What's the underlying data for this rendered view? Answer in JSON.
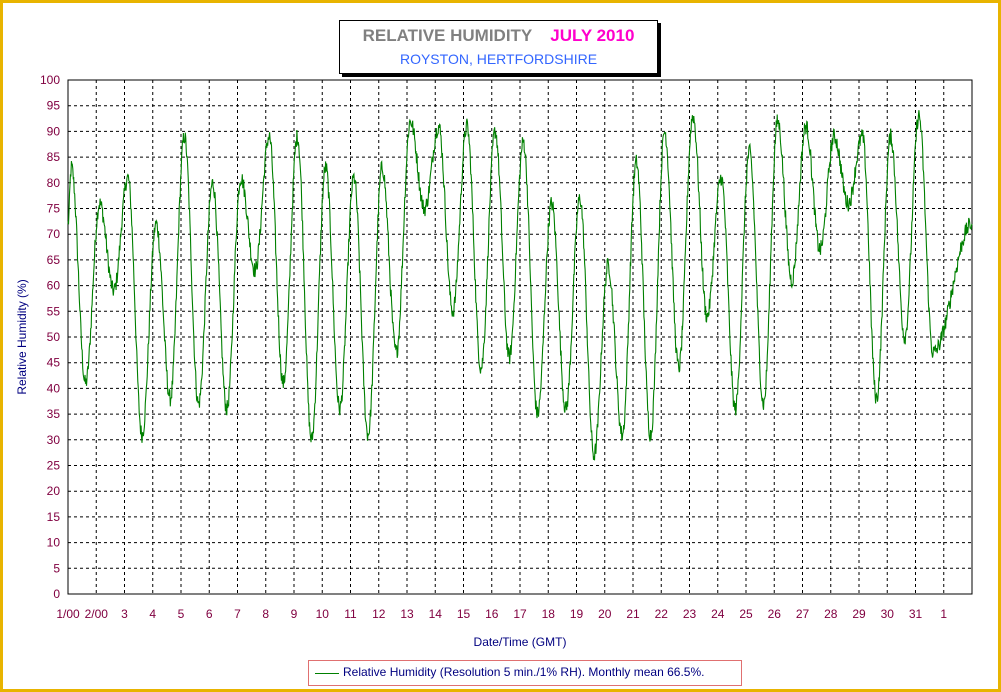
{
  "chart_data": {
    "type": "line",
    "title": "RELATIVE HUMIDITY",
    "title_date": "JULY 2010",
    "subtitle": "ROYSTON, HERTFORDSHIRE",
    "xlabel": "Date/Time (GMT)",
    "ylabel": "Relative Humidity (%)",
    "ylim": [
      0,
      100
    ],
    "yticks": [
      0,
      5,
      10,
      15,
      20,
      25,
      30,
      35,
      40,
      45,
      50,
      55,
      60,
      65,
      70,
      75,
      80,
      85,
      90,
      95,
      100
    ],
    "xlim": [
      0,
      32
    ],
    "xtick_labels": [
      "1/00",
      "2/00",
      "3",
      "4",
      "5",
      "6",
      "7",
      "8",
      "9",
      "10",
      "11",
      "12",
      "13",
      "14",
      "15",
      "16",
      "17",
      "18",
      "19",
      "20",
      "21",
      "22",
      "23",
      "24",
      "25",
      "26",
      "27",
      "28",
      "29",
      "30",
      "31",
      "1"
    ],
    "grid": true,
    "series": [
      {
        "name": "Relative Humidity (Resolution 5 min./1% RH). Monthly mean 66.5%.",
        "color": "#008000",
        "daily_extremes": [
          {
            "day": 1,
            "max": 83,
            "min": 41
          },
          {
            "day": 2,
            "max": 76,
            "min": 59
          },
          {
            "day": 3,
            "max": 81,
            "min": 31
          },
          {
            "day": 4,
            "max": 72,
            "min": 38
          },
          {
            "day": 5,
            "max": 89,
            "min": 37
          },
          {
            "day": 6,
            "max": 80,
            "min": 36
          },
          {
            "day": 7,
            "max": 81,
            "min": 63
          },
          {
            "day": 8,
            "max": 89,
            "min": 41
          },
          {
            "day": 9,
            "max": 89,
            "min": 30
          },
          {
            "day": 10,
            "max": 83,
            "min": 36
          },
          {
            "day": 11,
            "max": 81,
            "min": 31
          },
          {
            "day": 12,
            "max": 83,
            "min": 47
          },
          {
            "day": 13,
            "max": 92,
            "min": 75
          },
          {
            "day": 14,
            "max": 91,
            "min": 55
          },
          {
            "day": 15,
            "max": 91,
            "min": 44
          },
          {
            "day": 16,
            "max": 90,
            "min": 46
          },
          {
            "day": 17,
            "max": 88,
            "min": 35
          },
          {
            "day": 18,
            "max": 76,
            "min": 36
          },
          {
            "day": 19,
            "max": 77,
            "min": 27
          },
          {
            "day": 20,
            "max": 64,
            "min": 31
          },
          {
            "day": 21,
            "max": 84,
            "min": 31
          },
          {
            "day": 22,
            "max": 90,
            "min": 44
          },
          {
            "day": 23,
            "max": 93,
            "min": 54
          },
          {
            "day": 24,
            "max": 81,
            "min": 36
          },
          {
            "day": 25,
            "max": 86,
            "min": 37
          },
          {
            "day": 26,
            "max": 92,
            "min": 61
          },
          {
            "day": 27,
            "max": 91,
            "min": 67
          },
          {
            "day": 28,
            "max": 89,
            "min": 76
          },
          {
            "day": 29,
            "max": 89,
            "min": 38
          },
          {
            "day": 30,
            "max": 89,
            "min": 50
          },
          {
            "day": 31,
            "max": 93,
            "min": 47
          }
        ],
        "end_value": 72
      }
    ]
  }
}
